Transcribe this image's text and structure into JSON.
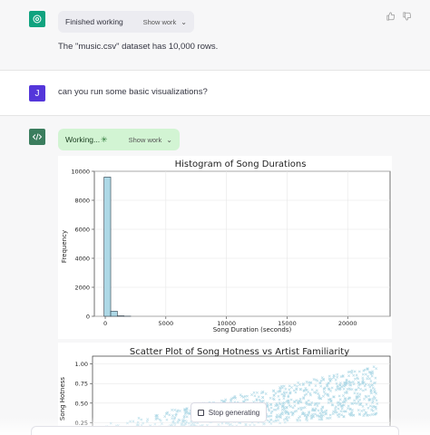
{
  "messages": {
    "assistant1": {
      "status_label": "Finished working",
      "show_work_label": "Show work",
      "text": "The \"music.csv\" dataset has 10,000 rows."
    },
    "user1": {
      "avatar_letter": "J",
      "text": "can you run some basic visualizations?"
    },
    "assistant2": {
      "status_label": "Working...",
      "show_work_label": "Show work"
    }
  },
  "stop_button_label": "Stop generating",
  "colors": {
    "gpt_avatar": "#10a37f",
    "user_avatar": "#5436da",
    "working_chip": "#d2f4d3",
    "bar_fill": "#add8e6"
  },
  "chart_data": [
    {
      "type": "bar",
      "title": "Histogram of Song Durations",
      "xlabel": "Song Duration (seconds)",
      "ylabel": "Frequency",
      "xlim": [
        -900,
        23500
      ],
      "ylim": [
        0,
        10000
      ],
      "x_ticks": [
        0,
        5000,
        10000,
        15000,
        20000
      ],
      "y_ticks": [
        0,
        2000,
        4000,
        6000,
        8000,
        10000
      ],
      "bins": [
        {
          "x0": -100,
          "x1": 450,
          "value": 9600
        },
        {
          "x0": 450,
          "x1": 1000,
          "value": 350
        },
        {
          "x0": 1000,
          "x1": 1550,
          "value": 30
        },
        {
          "x0": 1550,
          "x1": 2100,
          "value": 8
        }
      ],
      "grid": true
    },
    {
      "type": "scatter",
      "title": "Scatter Plot of Song Hotness vs Artist Familiarity",
      "xlabel": "",
      "ylabel": "Song Hotness",
      "ylim": [
        0,
        1.1
      ],
      "y_ticks": [
        0.25,
        0.5,
        0.75,
        1.0
      ],
      "y_tick_labels": [
        "0.25",
        "0.50",
        "0.75",
        "1.00"
      ],
      "marker": "x",
      "grid": true
    }
  ]
}
